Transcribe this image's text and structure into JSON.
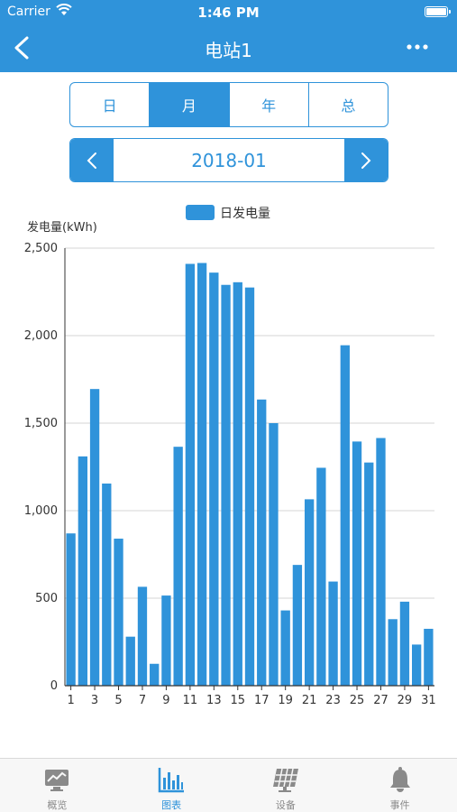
{
  "status_bar": {
    "carrier": "Carrier",
    "time": "1:46 PM"
  },
  "nav": {
    "title": "电站1"
  },
  "period_tabs": [
    {
      "label": "日",
      "active": false
    },
    {
      "label": "月",
      "active": true
    },
    {
      "label": "年",
      "active": false
    },
    {
      "label": "总",
      "active": false
    }
  ],
  "date_selector": {
    "value": "2018-01"
  },
  "colors": {
    "accent": "#2f93da",
    "tab_inactive": "#8a8a8a"
  },
  "chart_data": {
    "type": "bar",
    "ylabel": "发电量(kWh)",
    "series": [
      {
        "name": "日发电量",
        "values": [
          870,
          1310,
          1695,
          1155,
          840,
          280,
          565,
          125,
          515,
          1365,
          2410,
          2415,
          2360,
          2290,
          2305,
          2275,
          1635,
          1500,
          430,
          690,
          1065,
          1245,
          595,
          1945,
          1395,
          1275,
          1415,
          380,
          480,
          235,
          325
        ]
      }
    ],
    "categories": [
      "1",
      "2",
      "3",
      "4",
      "5",
      "6",
      "7",
      "8",
      "9",
      "10",
      "11",
      "12",
      "13",
      "14",
      "15",
      "16",
      "17",
      "18",
      "19",
      "20",
      "21",
      "22",
      "23",
      "24",
      "25",
      "26",
      "27",
      "28",
      "29",
      "30",
      "31"
    ],
    "x_tick_labels": [
      "1",
      "3",
      "5",
      "7",
      "9",
      "11",
      "13",
      "15",
      "17",
      "19",
      "21",
      "23",
      "25",
      "27",
      "29",
      "31"
    ],
    "y_ticks": [
      0,
      500,
      1000,
      1500,
      2000,
      2500
    ],
    "y_tick_labels": [
      "0",
      "500",
      "1,000",
      "1,500",
      "2,000",
      "2,500"
    ],
    "ylim": [
      0,
      2500
    ],
    "grid": true,
    "legend_position": "top-center"
  },
  "tabbar": [
    {
      "label": "概览",
      "icon": "monitor-icon",
      "active": false
    },
    {
      "label": "图表",
      "icon": "bar-chart-icon",
      "active": true
    },
    {
      "label": "设备",
      "icon": "solar-panel-icon",
      "active": false
    },
    {
      "label": "事件",
      "icon": "bell-icon",
      "active": false
    }
  ]
}
